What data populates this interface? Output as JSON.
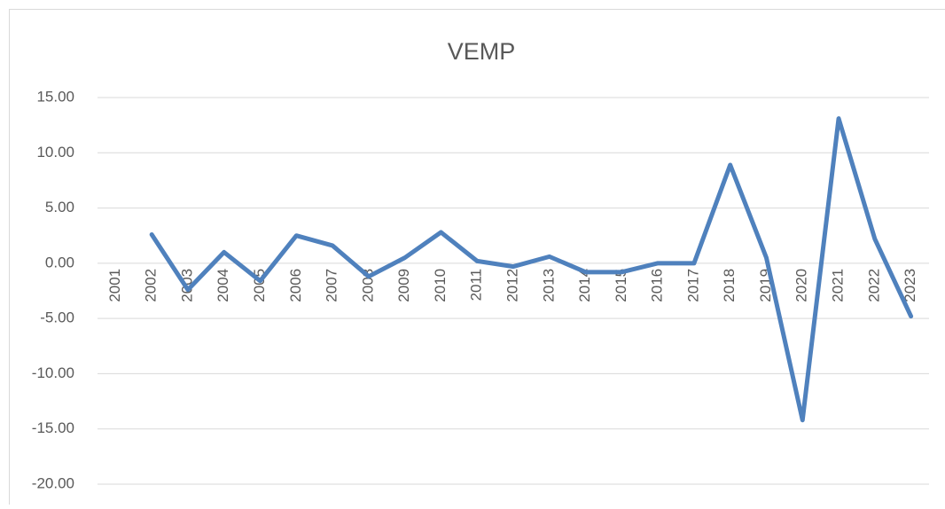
{
  "chart_data": {
    "type": "line",
    "title": "VEMP",
    "categories": [
      "2001",
      "2002",
      "2003",
      "2004",
      "2005",
      "2006",
      "2007",
      "2008",
      "2009",
      "2010",
      "2011",
      "2012",
      "2013",
      "2014",
      "2015",
      "2016",
      "2017",
      "2018",
      "2019",
      "2020",
      "2021",
      "2022",
      "2023"
    ],
    "series": [
      {
        "name": "VEMP",
        "color": "#4f81bd",
        "values": [
          null,
          2.6,
          -2.4,
          1.0,
          -1.6,
          2.5,
          1.6,
          -1.2,
          0.5,
          2.8,
          0.2,
          -0.3,
          0.6,
          -0.8,
          -0.8,
          0.0,
          0.0,
          8.9,
          0.5,
          -14.2,
          13.1,
          2.2,
          -4.8
        ]
      }
    ],
    "ylim": [
      -20,
      15
    ],
    "yticks": [
      {
        "value": -20,
        "label": "-20.00"
      },
      {
        "value": -15,
        "label": "-15.00"
      },
      {
        "value": -10,
        "label": "-10.00"
      },
      {
        "value": -5,
        "label": "-5.00"
      },
      {
        "value": 0,
        "label": "0.00"
      },
      {
        "value": 5,
        "label": "5.00"
      },
      {
        "value": 10,
        "label": "10.00"
      },
      {
        "value": 15,
        "label": "15.00"
      }
    ],
    "grid": true
  }
}
